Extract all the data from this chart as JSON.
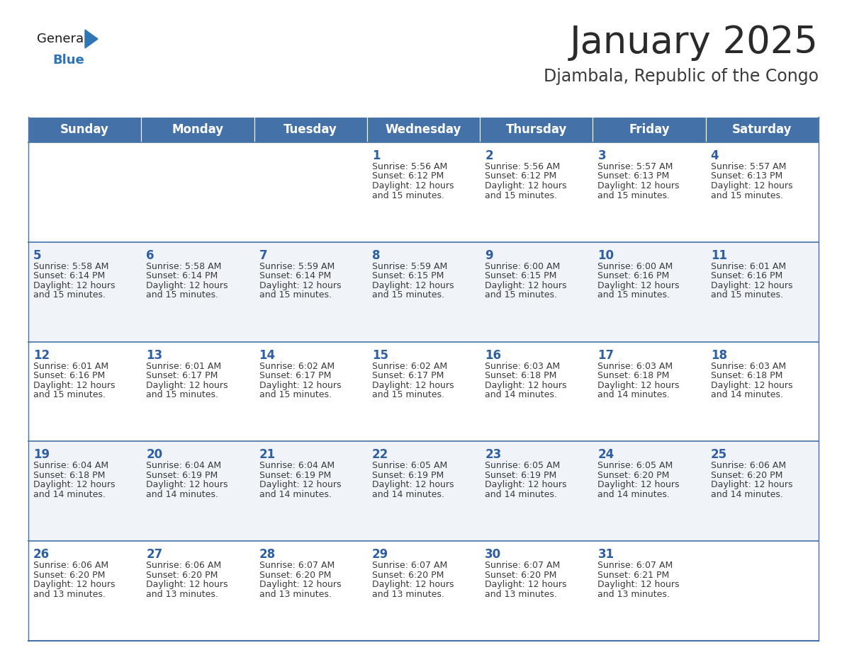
{
  "title": "January 2025",
  "subtitle": "Djambala, Republic of the Congo",
  "header_color": "#4472a8",
  "header_text_color": "#ffffff",
  "cell_bg_even": "#ffffff",
  "cell_bg_odd": "#f0f4f8",
  "day_number_color": "#2e5fa3",
  "text_color": "#3a3a3a",
  "border_color": "#4472a8",
  "days_of_week": [
    "Sunday",
    "Monday",
    "Tuesday",
    "Wednesday",
    "Thursday",
    "Friday",
    "Saturday"
  ],
  "weeks": [
    [
      {
        "day": "",
        "sunrise": "",
        "sunset": "",
        "daylight1": "",
        "daylight2": ""
      },
      {
        "day": "",
        "sunrise": "",
        "sunset": "",
        "daylight1": "",
        "daylight2": ""
      },
      {
        "day": "",
        "sunrise": "",
        "sunset": "",
        "daylight1": "",
        "daylight2": ""
      },
      {
        "day": "1",
        "sunrise": "Sunrise: 5:56 AM",
        "sunset": "Sunset: 6:12 PM",
        "daylight1": "Daylight: 12 hours",
        "daylight2": "and 15 minutes."
      },
      {
        "day": "2",
        "sunrise": "Sunrise: 5:56 AM",
        "sunset": "Sunset: 6:12 PM",
        "daylight1": "Daylight: 12 hours",
        "daylight2": "and 15 minutes."
      },
      {
        "day": "3",
        "sunrise": "Sunrise: 5:57 AM",
        "sunset": "Sunset: 6:13 PM",
        "daylight1": "Daylight: 12 hours",
        "daylight2": "and 15 minutes."
      },
      {
        "day": "4",
        "sunrise": "Sunrise: 5:57 AM",
        "sunset": "Sunset: 6:13 PM",
        "daylight1": "Daylight: 12 hours",
        "daylight2": "and 15 minutes."
      }
    ],
    [
      {
        "day": "5",
        "sunrise": "Sunrise: 5:58 AM",
        "sunset": "Sunset: 6:14 PM",
        "daylight1": "Daylight: 12 hours",
        "daylight2": "and 15 minutes."
      },
      {
        "day": "6",
        "sunrise": "Sunrise: 5:58 AM",
        "sunset": "Sunset: 6:14 PM",
        "daylight1": "Daylight: 12 hours",
        "daylight2": "and 15 minutes."
      },
      {
        "day": "7",
        "sunrise": "Sunrise: 5:59 AM",
        "sunset": "Sunset: 6:14 PM",
        "daylight1": "Daylight: 12 hours",
        "daylight2": "and 15 minutes."
      },
      {
        "day": "8",
        "sunrise": "Sunrise: 5:59 AM",
        "sunset": "Sunset: 6:15 PM",
        "daylight1": "Daylight: 12 hours",
        "daylight2": "and 15 minutes."
      },
      {
        "day": "9",
        "sunrise": "Sunrise: 6:00 AM",
        "sunset": "Sunset: 6:15 PM",
        "daylight1": "Daylight: 12 hours",
        "daylight2": "and 15 minutes."
      },
      {
        "day": "10",
        "sunrise": "Sunrise: 6:00 AM",
        "sunset": "Sunset: 6:16 PM",
        "daylight1": "Daylight: 12 hours",
        "daylight2": "and 15 minutes."
      },
      {
        "day": "11",
        "sunrise": "Sunrise: 6:01 AM",
        "sunset": "Sunset: 6:16 PM",
        "daylight1": "Daylight: 12 hours",
        "daylight2": "and 15 minutes."
      }
    ],
    [
      {
        "day": "12",
        "sunrise": "Sunrise: 6:01 AM",
        "sunset": "Sunset: 6:16 PM",
        "daylight1": "Daylight: 12 hours",
        "daylight2": "and 15 minutes."
      },
      {
        "day": "13",
        "sunrise": "Sunrise: 6:01 AM",
        "sunset": "Sunset: 6:17 PM",
        "daylight1": "Daylight: 12 hours",
        "daylight2": "and 15 minutes."
      },
      {
        "day": "14",
        "sunrise": "Sunrise: 6:02 AM",
        "sunset": "Sunset: 6:17 PM",
        "daylight1": "Daylight: 12 hours",
        "daylight2": "and 15 minutes."
      },
      {
        "day": "15",
        "sunrise": "Sunrise: 6:02 AM",
        "sunset": "Sunset: 6:17 PM",
        "daylight1": "Daylight: 12 hours",
        "daylight2": "and 15 minutes."
      },
      {
        "day": "16",
        "sunrise": "Sunrise: 6:03 AM",
        "sunset": "Sunset: 6:18 PM",
        "daylight1": "Daylight: 12 hours",
        "daylight2": "and 14 minutes."
      },
      {
        "day": "17",
        "sunrise": "Sunrise: 6:03 AM",
        "sunset": "Sunset: 6:18 PM",
        "daylight1": "Daylight: 12 hours",
        "daylight2": "and 14 minutes."
      },
      {
        "day": "18",
        "sunrise": "Sunrise: 6:03 AM",
        "sunset": "Sunset: 6:18 PM",
        "daylight1": "Daylight: 12 hours",
        "daylight2": "and 14 minutes."
      }
    ],
    [
      {
        "day": "19",
        "sunrise": "Sunrise: 6:04 AM",
        "sunset": "Sunset: 6:18 PM",
        "daylight1": "Daylight: 12 hours",
        "daylight2": "and 14 minutes."
      },
      {
        "day": "20",
        "sunrise": "Sunrise: 6:04 AM",
        "sunset": "Sunset: 6:19 PM",
        "daylight1": "Daylight: 12 hours",
        "daylight2": "and 14 minutes."
      },
      {
        "day": "21",
        "sunrise": "Sunrise: 6:04 AM",
        "sunset": "Sunset: 6:19 PM",
        "daylight1": "Daylight: 12 hours",
        "daylight2": "and 14 minutes."
      },
      {
        "day": "22",
        "sunrise": "Sunrise: 6:05 AM",
        "sunset": "Sunset: 6:19 PM",
        "daylight1": "Daylight: 12 hours",
        "daylight2": "and 14 minutes."
      },
      {
        "day": "23",
        "sunrise": "Sunrise: 6:05 AM",
        "sunset": "Sunset: 6:19 PM",
        "daylight1": "Daylight: 12 hours",
        "daylight2": "and 14 minutes."
      },
      {
        "day": "24",
        "sunrise": "Sunrise: 6:05 AM",
        "sunset": "Sunset: 6:20 PM",
        "daylight1": "Daylight: 12 hours",
        "daylight2": "and 14 minutes."
      },
      {
        "day": "25",
        "sunrise": "Sunrise: 6:06 AM",
        "sunset": "Sunset: 6:20 PM",
        "daylight1": "Daylight: 12 hours",
        "daylight2": "and 14 minutes."
      }
    ],
    [
      {
        "day": "26",
        "sunrise": "Sunrise: 6:06 AM",
        "sunset": "Sunset: 6:20 PM",
        "daylight1": "Daylight: 12 hours",
        "daylight2": "and 13 minutes."
      },
      {
        "day": "27",
        "sunrise": "Sunrise: 6:06 AM",
        "sunset": "Sunset: 6:20 PM",
        "daylight1": "Daylight: 12 hours",
        "daylight2": "and 13 minutes."
      },
      {
        "day": "28",
        "sunrise": "Sunrise: 6:07 AM",
        "sunset": "Sunset: 6:20 PM",
        "daylight1": "Daylight: 12 hours",
        "daylight2": "and 13 minutes."
      },
      {
        "day": "29",
        "sunrise": "Sunrise: 6:07 AM",
        "sunset": "Sunset: 6:20 PM",
        "daylight1": "Daylight: 12 hours",
        "daylight2": "and 13 minutes."
      },
      {
        "day": "30",
        "sunrise": "Sunrise: 6:07 AM",
        "sunset": "Sunset: 6:20 PM",
        "daylight1": "Daylight: 12 hours",
        "daylight2": "and 13 minutes."
      },
      {
        "day": "31",
        "sunrise": "Sunrise: 6:07 AM",
        "sunset": "Sunset: 6:21 PM",
        "daylight1": "Daylight: 12 hours",
        "daylight2": "and 13 minutes."
      },
      {
        "day": "",
        "sunrise": "",
        "sunset": "",
        "daylight1": "",
        "daylight2": ""
      }
    ]
  ],
  "title_fontsize": 38,
  "subtitle_fontsize": 17,
  "header_fontsize": 12,
  "day_num_fontsize": 12,
  "cell_text_fontsize": 9
}
